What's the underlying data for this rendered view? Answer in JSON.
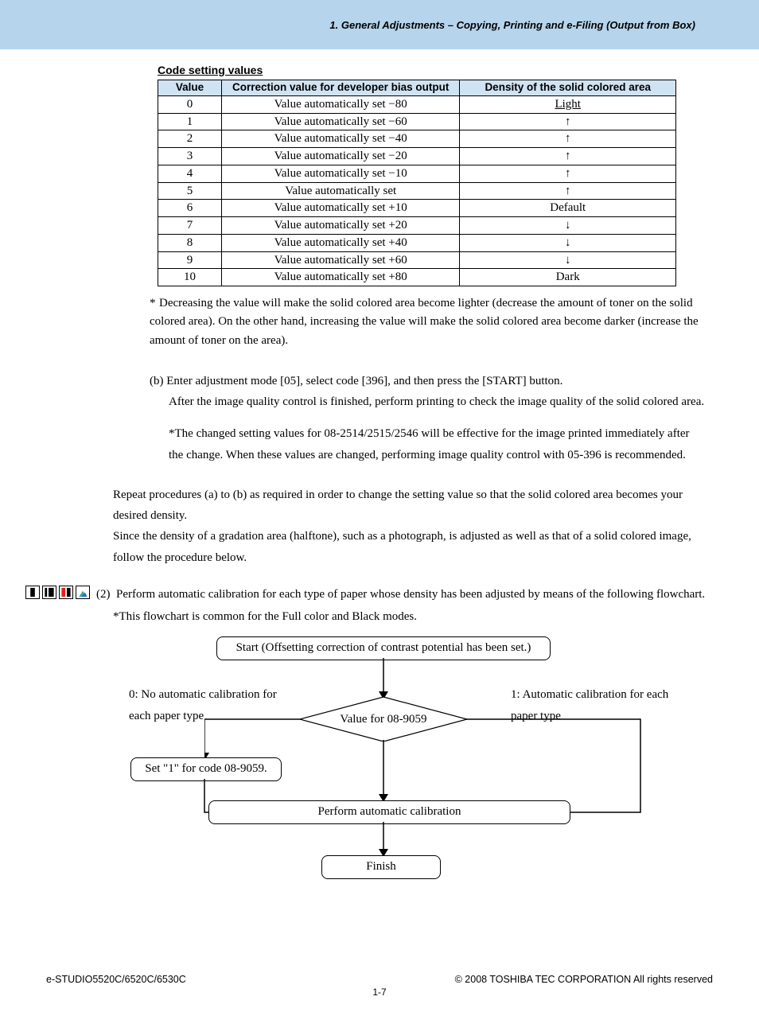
{
  "header": {
    "breadcrumb": "1. General Adjustments – Copying, Printing and e-Filing (Output from Box)"
  },
  "section": {
    "title": "Code setting values"
  },
  "table": {
    "columns": [
      "Value",
      "Correction value for developer bias output",
      "Density of the solid colored area"
    ],
    "rows": [
      {
        "value": "0",
        "correction": "Value automatically set −80",
        "density": "Light",
        "underline": true
      },
      {
        "value": "1",
        "correction": "Value automatically set −60",
        "density": "↑"
      },
      {
        "value": "2",
        "correction": "Value automatically set −40",
        "density": "↑"
      },
      {
        "value": "3",
        "correction": "Value automatically set −20",
        "density": "↑"
      },
      {
        "value": "4",
        "correction": "Value automatically set −10",
        "density": "↑"
      },
      {
        "value": "5",
        "correction": "Value automatically set",
        "density": "↑"
      },
      {
        "value": "6",
        "correction": "Value automatically set +10",
        "density": "Default"
      },
      {
        "value": "7",
        "correction": "Value automatically set +20",
        "density": "↓"
      },
      {
        "value": "8",
        "correction": "Value automatically set +40",
        "density": "↓"
      },
      {
        "value": "9",
        "correction": "Value automatically set +60",
        "density": "↓"
      },
      {
        "value": "10",
        "correction": "Value automatically set +80",
        "density": "Dark"
      }
    ]
  },
  "notes": {
    "decrease": "Decreasing the value will make the solid colored area become lighter (decrease the amount of toner on the solid colored area).  On the other hand, increasing the value will make the solid colored area become darker (increase the amount of toner on the area).",
    "b_line1": "(b) Enter adjustment mode [05], select code [396], and then press the [START] button.",
    "b_line2": "After the image quality control is finished, perform printing to check the image quality of the solid colored area.",
    "b_sub": "The changed setting values for 08-2514/2515/2546 will be effective for the image printed immediately after the change. When these values are changed, performing image quality control with 05-396 is recommended.",
    "repeat1": "Repeat procedures (a) to (b) as required in order to change the setting value so that the solid colored area becomes your desired density.",
    "repeat2": "Since the density of a gradation area (halftone), such as a photograph, is adjusted as well as that of a solid colored image, follow the procedure below."
  },
  "step2": {
    "num": "(2)",
    "text": "Perform automatic calibration for each type of paper whose density has been adjusted by means of the following flowchart.",
    "sub": "This flowchart is common for the Full color and Black modes."
  },
  "flowchart": {
    "start": "Start (Offsetting correction of contrast potential has been set.)",
    "decision": "Value for 08-9059",
    "left_label": "0:  No automatic calibration for each paper type",
    "right_label": "1:  Automatic calibration for each paper type",
    "set_box": "Set \"1\" for code 08-9059.",
    "perform": "Perform automatic calibration",
    "finish": "Finish"
  },
  "footer": {
    "left": "e-STUDIO5520C/6520C/6530C",
    "right": "© 2008 TOSHIBA TEC CORPORATION All rights reserved",
    "page": "1-7"
  },
  "colors": {
    "header_bg": "#b6d4ec",
    "table_header_bg": "#d0e3f2"
  }
}
